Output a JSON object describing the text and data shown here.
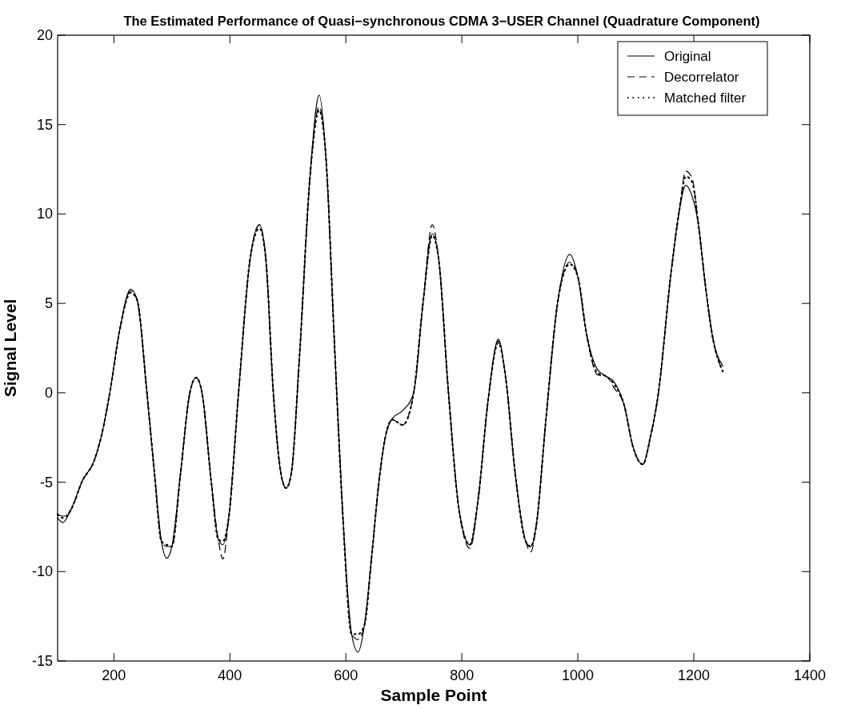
{
  "chart_data": {
    "type": "line",
    "title": "The Estimated Performance of Quasi−synchronous CDMA 3−USER Channel (Quadrature Component)",
    "xlabel": "Sample Point",
    "ylabel": "Signal Level",
    "x": [
      103,
      112,
      125,
      146,
      166,
      180,
      193,
      210,
      229,
      240,
      257,
      270,
      282,
      291,
      300,
      315,
      331,
      342,
      352,
      368,
      380,
      388,
      398,
      415,
      435,
      451,
      462,
      475,
      488,
      497,
      506,
      520,
      538,
      554,
      566,
      580,
      595,
      610,
      621,
      632,
      645,
      657,
      668,
      680,
      698,
      717,
      733,
      749,
      760,
      777,
      795,
      814,
      828,
      845,
      863,
      875,
      892,
      910,
      919,
      928,
      945,
      965,
      986,
      1000,
      1015,
      1034,
      1050,
      1062,
      1080,
      1095,
      1112,
      1125,
      1139,
      1160,
      1175,
      1186,
      1197,
      1208,
      1220,
      1232,
      1250
    ],
    "series": [
      {
        "name": "Original",
        "color": "#000000",
        "line_style": "solid",
        "values": [
          -7.0,
          -7.25,
          -6.6,
          -4.9,
          -3.8,
          -2.2,
          0,
          3.5,
          5.8,
          5.2,
          0,
          -4.5,
          -8.3,
          -9.25,
          -8.6,
          -4.5,
          0,
          0.85,
          0,
          -5,
          -8.2,
          -8.5,
          -7,
          0,
          7.5,
          9.4,
          7.5,
          0,
          -4.5,
          -5.33,
          -4.5,
          2,
          12,
          16.65,
          13,
          3,
          -7,
          -13.5,
          -14.5,
          -13,
          -9,
          -5,
          -2.5,
          -1.43,
          -1.0,
          0,
          5,
          8.9,
          7.5,
          0,
          -6.5,
          -8.5,
          -6,
          -0.5,
          3.0,
          1,
          -4.5,
          -8.3,
          -8.6,
          -7.5,
          -1.5,
          5,
          7.74,
          6.5,
          3.3,
          1.3,
          0.9,
          0.63,
          -0.7,
          -3,
          -4.0,
          -2.5,
          0,
          6.5,
          10.2,
          11.6,
          11,
          9.4,
          6,
          3.2,
          1.5
        ]
      },
      {
        "name": "Decorrelator",
        "color": "#000000",
        "line_style": "dashed",
        "values": [
          -6.8,
          -6.9,
          -6.6,
          -4.9,
          -3.8,
          -2.2,
          0,
          3.5,
          5.7,
          5.2,
          0,
          -4.5,
          -8.3,
          -8.6,
          -8.6,
          -4.5,
          0,
          0.85,
          0,
          -5,
          -8.2,
          -9.3,
          -7,
          0,
          7.5,
          9.4,
          7.5,
          0,
          -4.5,
          -5.33,
          -4.5,
          2,
          12,
          16.0,
          13,
          3,
          -7,
          -13.5,
          -13.8,
          -13,
          -9,
          -5,
          -2.5,
          -1.5,
          -1.8,
          0,
          5,
          9.4,
          7.5,
          0,
          -6.5,
          -8.7,
          -6,
          -0.5,
          2.9,
          1,
          -4.5,
          -8.3,
          -8.9,
          -7.5,
          -1.5,
          5,
          7.3,
          6.5,
          3.3,
          1.0,
          0.9,
          0.3,
          -0.7,
          -3,
          -4.0,
          -2.5,
          0,
          6.5,
          10.2,
          12.4,
          12.0,
          9.4,
          6,
          3.2,
          1.2
        ]
      },
      {
        "name": "Matched filter",
        "color": "#000000",
        "line_style": "dotted",
        "values": [
          -6.8,
          -7.0,
          -6.6,
          -4.9,
          -3.8,
          -2.2,
          0,
          3.5,
          5.6,
          5.2,
          0,
          -4.5,
          -8.3,
          -8.5,
          -8.6,
          -4.5,
          0,
          0.85,
          0,
          -5,
          -8.2,
          -8.3,
          -7,
          0,
          7.5,
          9.2,
          7.5,
          0,
          -4.5,
          -5.33,
          -4.5,
          2,
          12,
          15.8,
          13,
          3,
          -7,
          -13.5,
          -13.5,
          -13,
          -9,
          -5,
          -2.5,
          -1.5,
          -1.8,
          0,
          5,
          8.8,
          7.5,
          0,
          -6.5,
          -8.5,
          -6,
          -0.5,
          2.8,
          1,
          -4.5,
          -8.3,
          -8.6,
          -7.5,
          -1.5,
          5,
          7.2,
          6.5,
          3.3,
          1.1,
          0.9,
          0.5,
          -0.7,
          -3,
          -4.0,
          -2.5,
          0,
          6.5,
          10.2,
          12.1,
          11.8,
          9.4,
          6,
          3.2,
          1.2
        ]
      }
    ],
    "xlim": [
      103,
      1400
    ],
    "xticks": [
      200,
      400,
      600,
      800,
      1000,
      1200,
      1400
    ],
    "ylim": [
      -15,
      20
    ],
    "yticks": [
      -15,
      -10,
      -5,
      0,
      5,
      10,
      15,
      20
    ],
    "legend": "top right",
    "marker": "none",
    "grid": false
  }
}
